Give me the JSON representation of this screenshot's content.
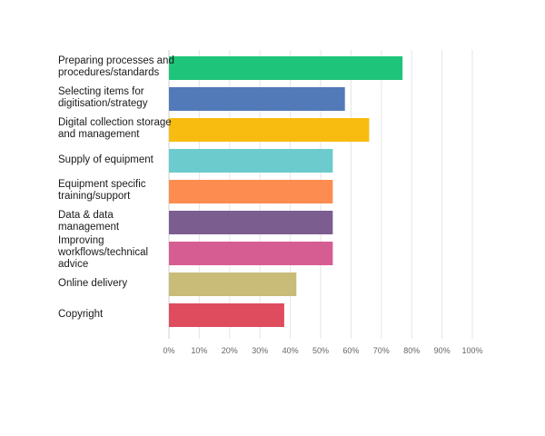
{
  "chart_data": {
    "type": "bar",
    "orientation": "horizontal",
    "categories": [
      "Preparing processes and procedures/standards",
      "Selecting items for digitisation/strategy",
      "Digital collection storage and management",
      "Supply of equipment",
      "Equipment specific training/support",
      "Data & data management",
      "Improving workflows/technical advice",
      "Online delivery",
      "Copyright"
    ],
    "category_display": [
      "Preparing processes and\nprocedures/standards",
      "Selecting items for\ndigitisation/strategy",
      "Digital collection storage\nand management",
      "Supply of equipment",
      "Equipment specific\ntraining/support",
      "Data & data\nmanagement",
      "Improving\nworkflows/technical\nadvice",
      "Online delivery",
      "Copyright"
    ],
    "values": [
      77,
      58,
      66,
      54,
      54,
      54,
      54,
      42,
      38
    ],
    "colors": [
      "#1ec47a",
      "#527ab8",
      "#f7bc0f",
      "#6ccbcc",
      "#fc8c50",
      "#7c5d8f",
      "#d65d91",
      "#c9bb78",
      "#df4c5e"
    ],
    "xlim": [
      0,
      100
    ],
    "ticks": [
      "0%",
      "10%",
      "20%",
      "30%",
      "40%",
      "50%",
      "60%",
      "70%",
      "80%",
      "90%",
      "100%"
    ],
    "grid": true,
    "title": "",
    "xlabel": "",
    "ylabel": ""
  }
}
